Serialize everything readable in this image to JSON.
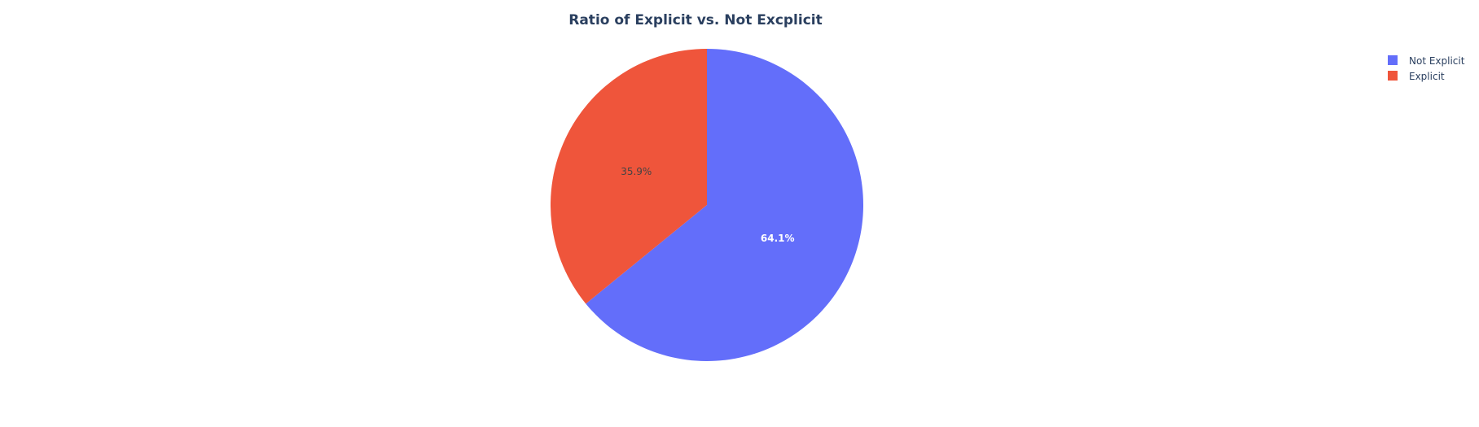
{
  "chart_data": {
    "type": "pie",
    "title": "Ratio of Explicit vs. Not Excplicit",
    "slices": [
      {
        "name": "Not Explicit",
        "value": 64.1,
        "label": "64.1%",
        "color": "#636efa",
        "label_color": "#ffffff"
      },
      {
        "name": "Explicit",
        "value": 35.9,
        "label": "35.9%",
        "color": "#ef553b",
        "label_color": "#444444"
      }
    ],
    "direction": "clockwise",
    "start": "top",
    "legend_position": "top-right"
  }
}
